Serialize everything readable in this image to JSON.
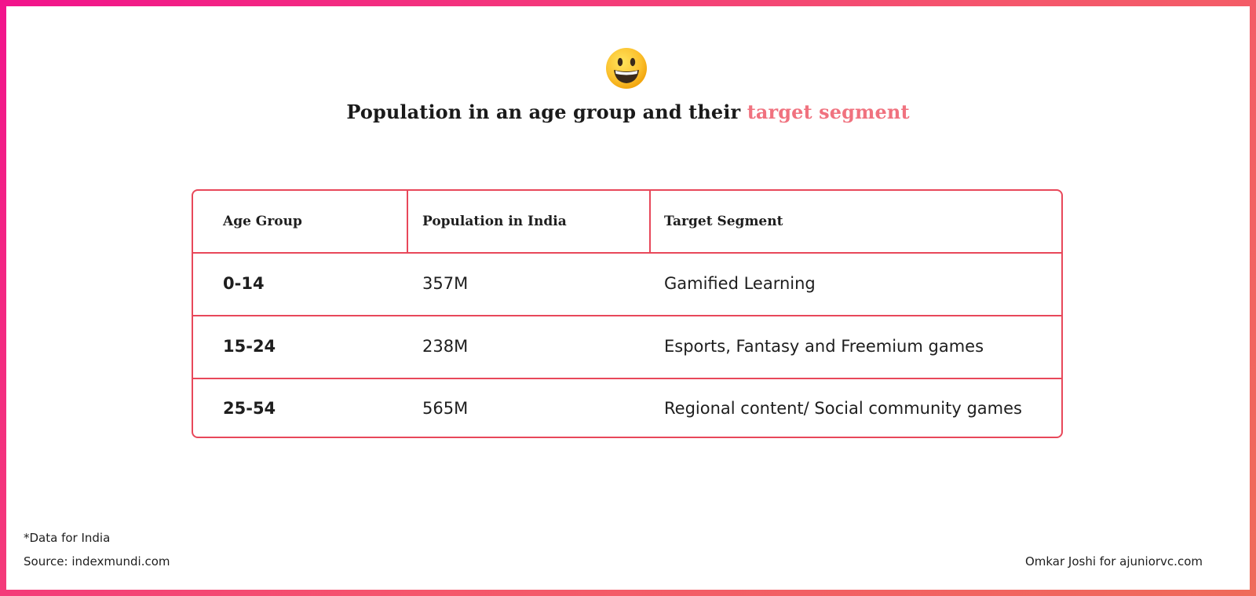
{
  "title": {
    "main": "Population in an age group and their ",
    "accent": "target segment"
  },
  "emoji_icon": "grinning-face-icon",
  "table": {
    "headers": [
      "Age Group",
      "Population in India",
      "Target Segment"
    ],
    "rows": [
      [
        "0-14",
        "357M",
        "Gamified Learning"
      ],
      [
        "15-24",
        "238M",
        "Esports, Fantasy and Freemium games"
      ],
      [
        "25-54",
        "565M",
        "Regional content/ Social community games"
      ]
    ]
  },
  "footer": {
    "note": "*Data for India",
    "source": "Source: indexmundi.com",
    "credit": "Omkar Joshi for ajuniorvc.com"
  },
  "colors": {
    "accent": "#f0727f",
    "table_border": "#e8485a",
    "frame_gradient": [
      "#f2138c",
      "#f5576c",
      "#ef6b5a"
    ]
  }
}
